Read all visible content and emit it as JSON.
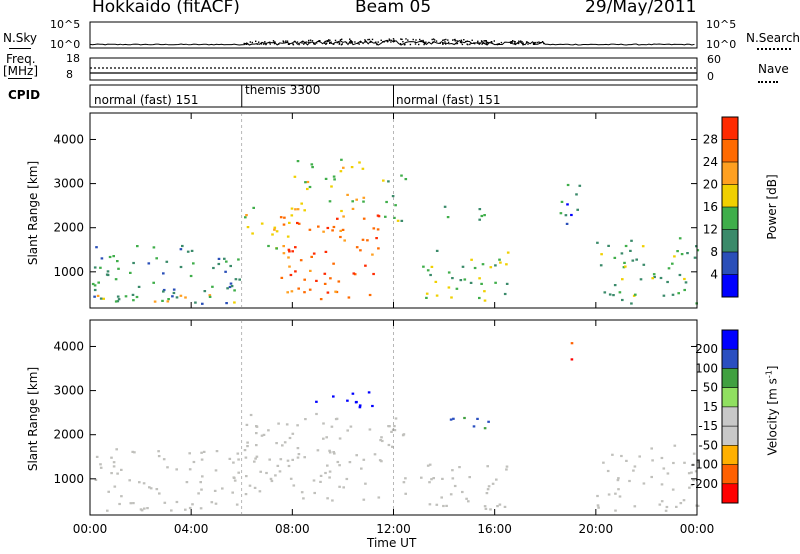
{
  "header": {
    "title": "Hokkaido (fitACF)",
    "beam": "Beam 05",
    "date": "29/May/2011"
  },
  "top_panel": {
    "left_label": "N.Sky",
    "right_label": "N.Search",
    "left_ticks": [
      "10^5",
      "10^0"
    ],
    "right_ticks": [
      "10^5",
      "10^0"
    ]
  },
  "freq_panel": {
    "left_label_1": "Freq.",
    "left_label_2": "[MHz]",
    "right_label": "Nave",
    "left_ticks": [
      "18",
      "8"
    ],
    "right_ticks": [
      "60",
      "0"
    ]
  },
  "cpid": {
    "label": "CPID",
    "segments": [
      {
        "text": "normal (fast) 151",
        "start_hour": 0
      },
      {
        "text": "themis 3300",
        "start_hour": 6
      },
      {
        "text": "normal (fast) 151",
        "start_hour": 12
      }
    ]
  },
  "colors": {
    "power_scale": [
      "#0000ff",
      "#2a4fb8",
      "#3a8a6a",
      "#3fae4a",
      "#f0d000",
      "#ffa020",
      "#ff6a00",
      "#ff2a00"
    ],
    "velocity_scale": [
      "#ff0000",
      "#ff6000",
      "#ffb000",
      "#c8c8c8",
      "#c8c8c8",
      "#90e060",
      "#40a040",
      "#2a4fc0",
      "#0000ff"
    ],
    "ground_scatter": "#c0c0bc"
  },
  "chart_data": [
    {
      "type": "heatmap",
      "title": "",
      "ylabel": "Slant Range [km]",
      "xlabel": "Time UT",
      "x_ticks": [
        "00:00",
        "04:00",
        "08:00",
        "12:00",
        "16:00",
        "20:00",
        "00:00"
      ],
      "xlim_hours": [
        0,
        24
      ],
      "ylim": [
        180,
        4600
      ],
      "y_ticks": [
        1000,
        2000,
        3000,
        4000
      ],
      "colorbar": {
        "label": "Power [dB]",
        "ticks": [
          "4",
          "8",
          "12",
          "16",
          "20",
          "24",
          "28"
        ],
        "range": [
          0,
          32
        ]
      },
      "echo_regions": [
        {
          "t0": 0.0,
          "t1": 6.0,
          "r0": 300,
          "r1": 1700,
          "level": 11
        },
        {
          "t0": 0.0,
          "t1": 6.0,
          "r0": 300,
          "r1": 500,
          "level": 19
        },
        {
          "t0": 6.0,
          "t1": 8.0,
          "r0": 1500,
          "r1": 2500,
          "level": 18
        },
        {
          "t0": 7.5,
          "t1": 11.5,
          "r0": 400,
          "r1": 2400,
          "level": 26
        },
        {
          "t0": 8.0,
          "t1": 11.0,
          "r0": 2400,
          "r1": 3600,
          "level": 18
        },
        {
          "t0": 11.5,
          "t1": 12.5,
          "r0": 2000,
          "r1": 3300,
          "level": 14
        },
        {
          "t0": 13.0,
          "t1": 16.5,
          "r0": 300,
          "r1": 1500,
          "level": 14
        },
        {
          "t0": 13.5,
          "t1": 16.0,
          "r0": 2200,
          "r1": 2500,
          "level": 10
        },
        {
          "t0": 18.5,
          "t1": 19.5,
          "r0": 2000,
          "r1": 3200,
          "level": 8
        },
        {
          "t0": 20.0,
          "t1": 24.0,
          "r0": 300,
          "r1": 1800,
          "level": 13
        }
      ]
    },
    {
      "type": "heatmap",
      "title": "",
      "ylabel": "Slant Range [km]",
      "xlabel": "Time UT",
      "x_ticks": [
        "00:00",
        "04:00",
        "08:00",
        "12:00",
        "16:00",
        "20:00",
        "00:00"
      ],
      "xlim_hours": [
        0,
        24
      ],
      "ylim": [
        180,
        4600
      ],
      "y_ticks": [
        1000,
        2000,
        3000,
        4000
      ],
      "colorbar": {
        "label": "Velocity [m s^-1]",
        "ticks": [
          "200",
          "100",
          "50",
          "15",
          "-15",
          "-50",
          "-100",
          "-200"
        ]
      },
      "echo_regions": [
        {
          "t0": 0.0,
          "t1": 6.0,
          "r0": 300,
          "r1": 1700,
          "value": 0
        },
        {
          "t0": 6.0,
          "t1": 12.5,
          "r0": 500,
          "r1": 2500,
          "value": 0
        },
        {
          "t0": 8.5,
          "t1": 11.5,
          "r0": 2600,
          "r1": 3000,
          "value": 200
        },
        {
          "t0": 13.0,
          "t1": 16.5,
          "r0": 300,
          "r1": 1500,
          "value": 0
        },
        {
          "t0": 14.0,
          "t1": 16.0,
          "r0": 2100,
          "r1": 2500,
          "value": 60
        },
        {
          "t0": 18.8,
          "t1": 19.2,
          "r0": 3600,
          "r1": 4100,
          "value": -200
        },
        {
          "t0": 20.0,
          "t1": 24.0,
          "r0": 300,
          "r1": 1800,
          "value": 0
        }
      ]
    }
  ]
}
